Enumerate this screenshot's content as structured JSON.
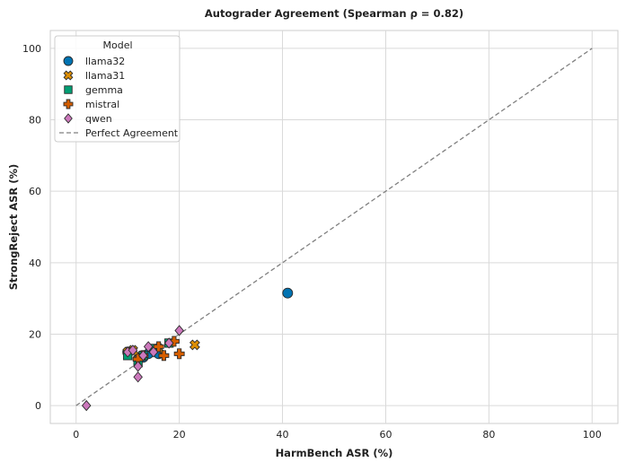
{
  "chart_data": {
    "type": "scatter",
    "title": "Autograder Agreement (Spearman ρ = 0.82)",
    "xlabel": "HarmBench ASR (%)",
    "ylabel": "StrongReject ASR (%)",
    "xlim": [
      -5,
      105
    ],
    "ylim": [
      -5,
      105
    ],
    "xticks": [
      0,
      20,
      40,
      60,
      80,
      100
    ],
    "yticks": [
      0,
      20,
      40,
      60,
      80,
      100
    ],
    "grid": true,
    "legend_title": "Model",
    "legend_placement": "top-left",
    "series": [
      {
        "name": "llama32",
        "marker": "circle",
        "color": "#0173b2",
        "points": [
          [
            41,
            31.5
          ],
          [
            16,
            14.5
          ],
          [
            13,
            13.5
          ],
          [
            14,
            14.5
          ],
          [
            10,
            15
          ],
          [
            12,
            13
          ]
        ]
      },
      {
        "name": "llama31",
        "marker": "x",
        "color": "#de8f05",
        "points": [
          [
            23,
            17
          ],
          [
            11,
            15.5
          ],
          [
            10,
            15
          ],
          [
            12,
            14
          ],
          [
            16,
            16
          ]
        ]
      },
      {
        "name": "gemma",
        "marker": "square",
        "color": "#029e73",
        "points": [
          [
            18,
            17.5
          ],
          [
            10,
            14
          ],
          [
            15,
            16
          ],
          [
            12,
            12
          ],
          [
            13,
            14
          ]
        ]
      },
      {
        "name": "mistral",
        "marker": "plus",
        "color": "#d55e00",
        "points": [
          [
            20,
            14.5
          ],
          [
            17,
            14
          ],
          [
            19,
            18
          ],
          [
            16,
            16.5
          ],
          [
            13,
            14
          ],
          [
            12,
            13
          ]
        ]
      },
      {
        "name": "qwen",
        "marker": "diamond",
        "color": "#cc78bc",
        "points": [
          [
            2,
            0
          ],
          [
            12,
            8
          ],
          [
            12,
            11
          ],
          [
            20,
            21
          ],
          [
            14,
            16.5
          ],
          [
            13,
            14
          ],
          [
            10,
            15
          ],
          [
            15,
            15
          ],
          [
            18,
            17.5
          ],
          [
            11,
            15.5
          ]
        ]
      }
    ],
    "reference_line": {
      "name": "Perfect Agreement",
      "from": [
        0,
        0
      ],
      "to": [
        100,
        100
      ],
      "color": "#808080"
    }
  }
}
